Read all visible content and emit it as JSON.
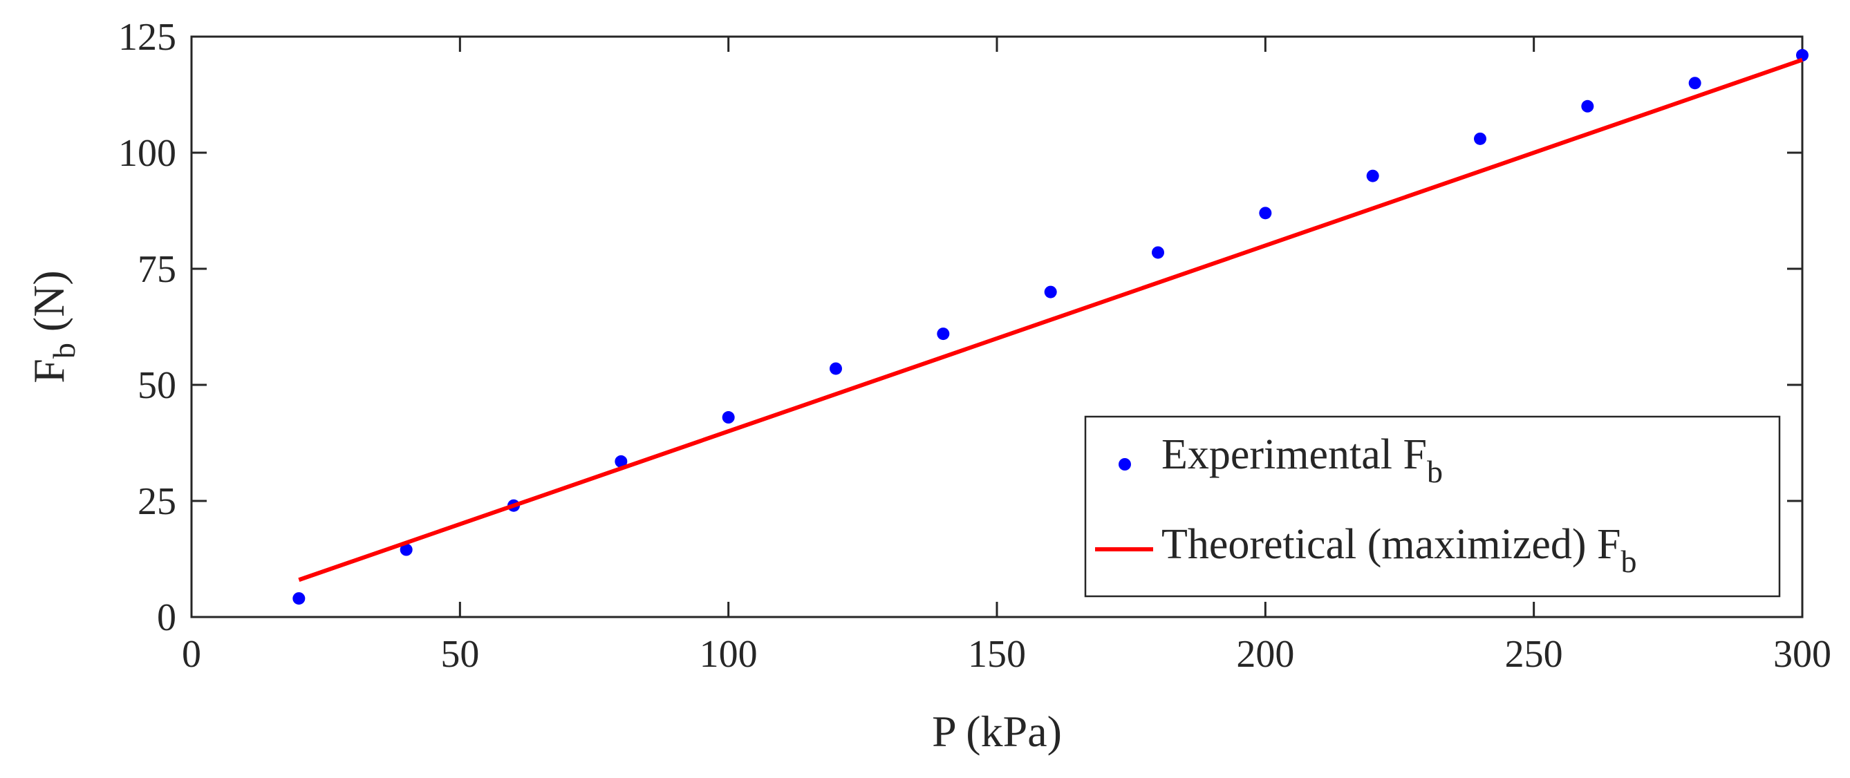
{
  "chart_data": {
    "type": "scatter",
    "xlabel": "P (kPa)",
    "ylabel_main": "F",
    "ylabel_sub": "b",
    "ylabel_unit": " (N)",
    "xlim": [
      0,
      300
    ],
    "ylim": [
      0,
      125
    ],
    "xticks": [
      0,
      50,
      100,
      150,
      200,
      250,
      300
    ],
    "yticks": [
      0,
      25,
      50,
      75,
      100,
      125
    ],
    "grid": false,
    "legend_position": "bottom-right",
    "series": [
      {
        "name": "Experimental",
        "name_sub": "b",
        "name_prefix": "Experimental F",
        "kind": "scatter",
        "color": "#0000ff",
        "x": [
          20,
          40,
          60,
          80,
          100,
          120,
          140,
          160,
          180,
          200,
          220,
          240,
          260,
          280,
          300
        ],
        "y": [
          4,
          14.5,
          24,
          33.5,
          43,
          53.5,
          61,
          70,
          78.5,
          87,
          95,
          103,
          110,
          115,
          121
        ]
      },
      {
        "name": "Theoretical (maximized)",
        "name_sub": "b",
        "name_prefix": "Theoretical (maximized) F",
        "kind": "line",
        "color": "#ff0000",
        "x": [
          20,
          300
        ],
        "y": [
          8,
          120
        ]
      }
    ]
  }
}
